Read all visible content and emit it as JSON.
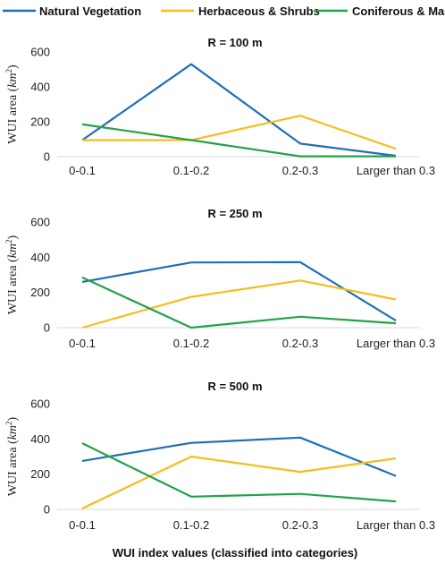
{
  "legend": [
    {
      "label": "Natural Vegetation",
      "color": "#1f6fb8"
    },
    {
      "label": "Herbaceous & Shrubs",
      "color": "#f5bd1f"
    },
    {
      "label": "Coniferous & Maquis",
      "color": "#22a34a"
    }
  ],
  "y_axis_label": {
    "text": "WUI area (",
    "math": "km",
    "sup": "2",
    "close": ")"
  },
  "x_axis_label": "WUI index values (classified into categories)",
  "chart_data": [
    {
      "type": "line",
      "title": "R = 100 m",
      "categories": [
        "0-0.1",
        "0.1-0.2",
        "0.2-0.3",
        "Larger than 0.3"
      ],
      "ylim": [
        0,
        600
      ],
      "yticks": [
        0,
        200,
        400,
        600
      ],
      "grid": false,
      "series": [
        {
          "name": "Natural Vegetation",
          "values": [
            95,
            530,
            75,
            5
          ]
        },
        {
          "name": "Herbaceous & Shrubs",
          "values": [
            95,
            95,
            235,
            45
          ]
        },
        {
          "name": "Coniferous & Maquis",
          "values": [
            185,
            95,
            2,
            2
          ]
        }
      ]
    },
    {
      "type": "line",
      "title": "R = 250 m",
      "categories": [
        "0-0.1",
        "0.1-0.2",
        "0.2-0.3",
        "Larger than 0.3"
      ],
      "ylim": [
        0,
        600
      ],
      "yticks": [
        0,
        200,
        400,
        600
      ],
      "grid": false,
      "series": [
        {
          "name": "Natural Vegetation",
          "values": [
            260,
            370,
            372,
            40
          ]
        },
        {
          "name": "Herbaceous & Shrubs",
          "values": [
            0,
            175,
            268,
            160
          ]
        },
        {
          "name": "Coniferous & Maquis",
          "values": [
            285,
            0,
            62,
            25
          ]
        }
      ]
    },
    {
      "type": "line",
      "title": "R = 500 m",
      "categories": [
        "0-0.1",
        "0.1-0.2",
        "0.2-0.3",
        "Larger than 0.3"
      ],
      "ylim": [
        0,
        600
      ],
      "yticks": [
        0,
        200,
        400,
        600
      ],
      "grid": false,
      "series": [
        {
          "name": "Natural Vegetation",
          "values": [
            275,
            378,
            408,
            190
          ]
        },
        {
          "name": "Herbaceous & Shrubs",
          "values": [
            5,
            300,
            213,
            290
          ]
        },
        {
          "name": "Coniferous & Maquis",
          "values": [
            376,
            72,
            88,
            45
          ]
        }
      ]
    }
  ]
}
